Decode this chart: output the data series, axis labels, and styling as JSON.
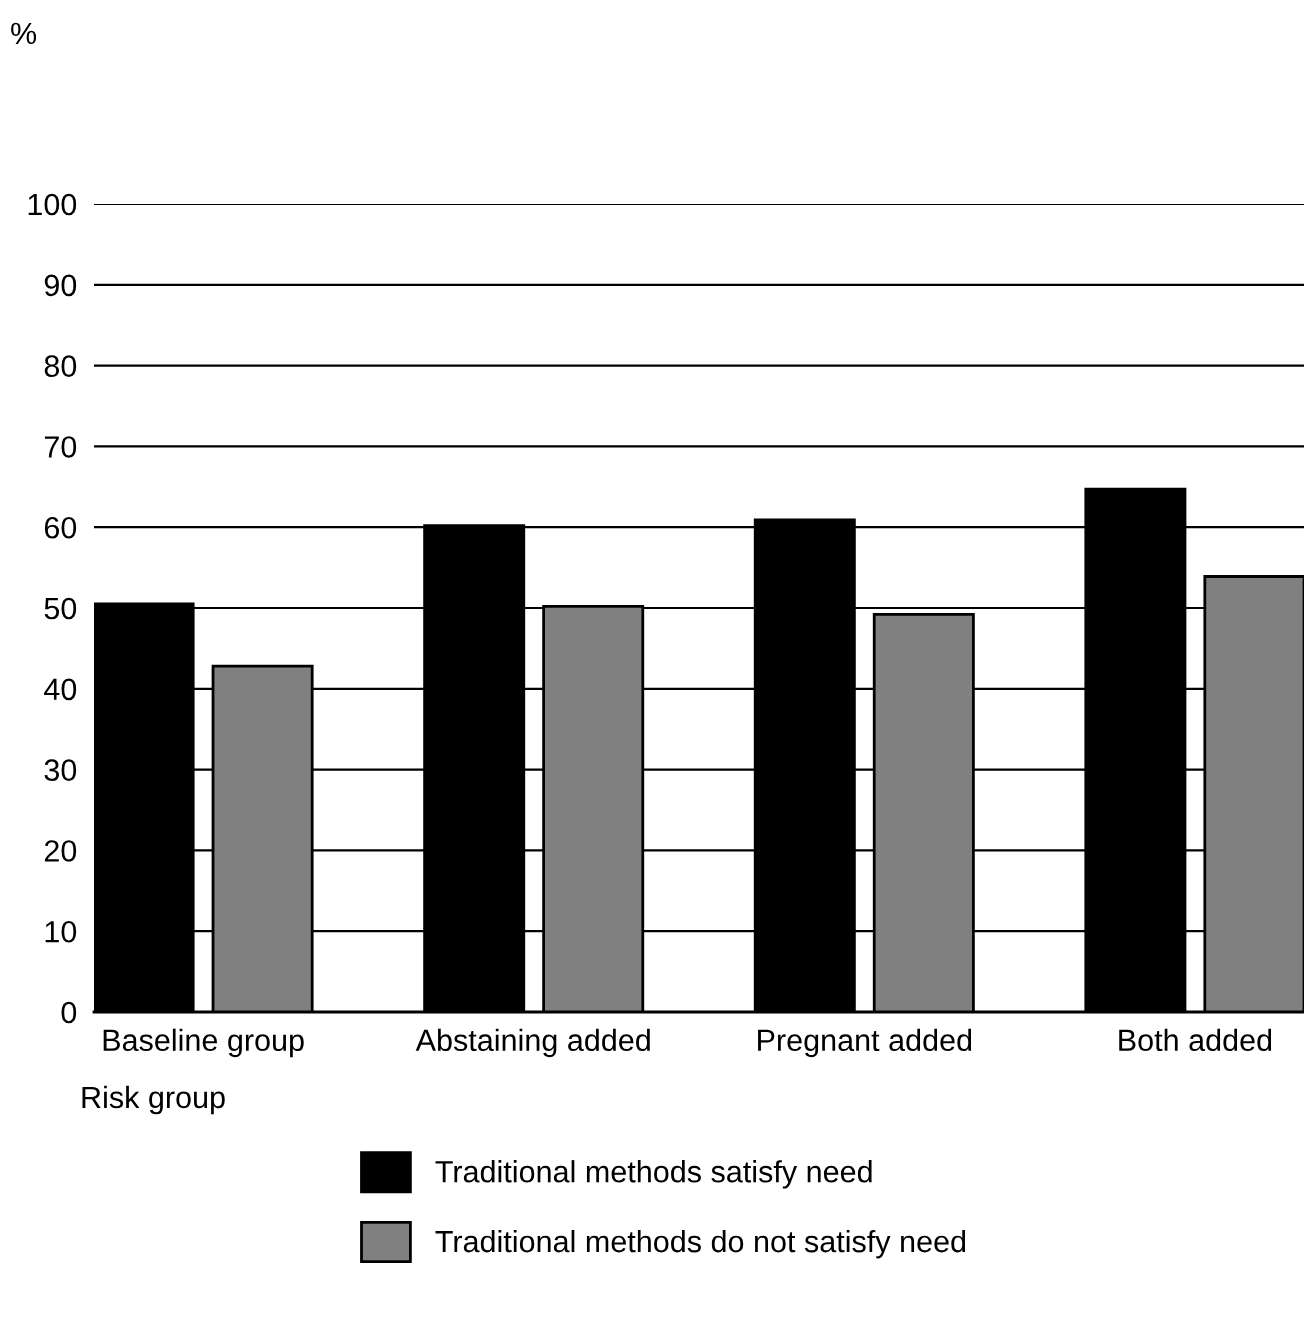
{
  "chart_data": {
    "type": "bar",
    "ylabel": "%",
    "xlabel": "Risk group",
    "categories": [
      "Baseline group",
      "Abstaining added",
      "Pregnant added",
      "Both added"
    ],
    "series": [
      {
        "name": "Traditional methods satisfy need",
        "color": "#000000",
        "values": [
          50.5,
          60.2,
          60.9,
          64.7
        ]
      },
      {
        "name": "Traditional methods do not satisfy need",
        "color": "#808080",
        "values": [
          42.8,
          50.2,
          49.2,
          53.9
        ]
      }
    ],
    "ylim": [
      0,
      100
    ],
    "yticks": [
      0,
      10,
      20,
      30,
      40,
      50,
      60,
      70,
      80,
      90,
      100
    ],
    "grid": "y",
    "legend": "bottom"
  }
}
